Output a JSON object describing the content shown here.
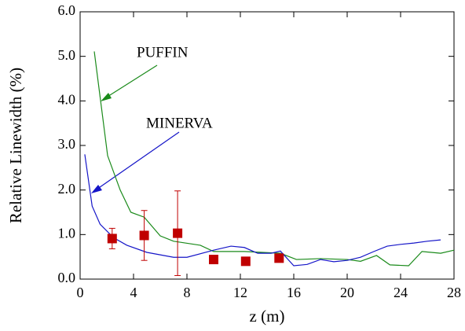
{
  "chart_data": {
    "type": "line",
    "xlabel": "z (m)",
    "ylabel": "Relative Linewidth (%)",
    "xlim": [
      0,
      28
    ],
    "xticks": [
      0,
      4,
      8,
      12,
      16,
      20,
      24,
      28
    ],
    "ylim": [
      0,
      6
    ],
    "yticks": [
      {
        "value": 0,
        "label": "0.0"
      },
      {
        "value": 1,
        "label": "1.0"
      },
      {
        "value": 2,
        "label": "2.0"
      },
      {
        "value": 3,
        "label": "3.0"
      },
      {
        "value": 4,
        "label": "4.0"
      },
      {
        "value": 5,
        "label": "5.0"
      },
      {
        "value": 6,
        "label": "6.0"
      }
    ],
    "series": [
      {
        "name": "PUFFIN",
        "color": "#1a8a1a",
        "x": [
          1.06,
          2.06,
          3.0,
          3.8,
          4.8,
          6,
          7,
          9,
          10,
          12.3,
          15,
          16.2,
          18,
          20,
          21,
          22.2,
          23.2,
          24.6,
          25.6,
          27,
          28
        ],
        "values": [
          5.11,
          2.77,
          2.0,
          1.5,
          1.39,
          0.97,
          0.85,
          0.76,
          0.62,
          0.62,
          0.58,
          0.44,
          0.46,
          0.44,
          0.4,
          0.53,
          0.32,
          0.3,
          0.62,
          0.58,
          0.65
        ]
      },
      {
        "name": "MINERVA",
        "color": "#1515c8",
        "x": [
          0.35,
          0.9,
          1.5,
          2.5,
          3.5,
          5,
          7,
          8,
          10,
          11.3,
          12.3,
          13.3,
          14.3,
          15,
          16,
          17,
          18,
          19,
          20,
          21,
          22,
          23,
          24,
          25,
          26,
          27
        ],
        "values": [
          2.8,
          1.64,
          1.23,
          0.93,
          0.76,
          0.6,
          0.49,
          0.49,
          0.65,
          0.74,
          0.71,
          0.58,
          0.58,
          0.63,
          0.3,
          0.33,
          0.44,
          0.39,
          0.42,
          0.49,
          0.62,
          0.74,
          0.78,
          0.81,
          0.85,
          0.88
        ]
      }
    ],
    "measurements": {
      "color": "#c00000",
      "x": [
        2.4,
        4.8,
        7.3,
        10,
        12.4,
        14.9
      ],
      "values": [
        0.91,
        0.98,
        1.03,
        0.44,
        0.4,
        0.47
      ],
      "errors": [
        0.23,
        0.56,
        0.95,
        0.08,
        0.04,
        0.05
      ]
    }
  }
}
